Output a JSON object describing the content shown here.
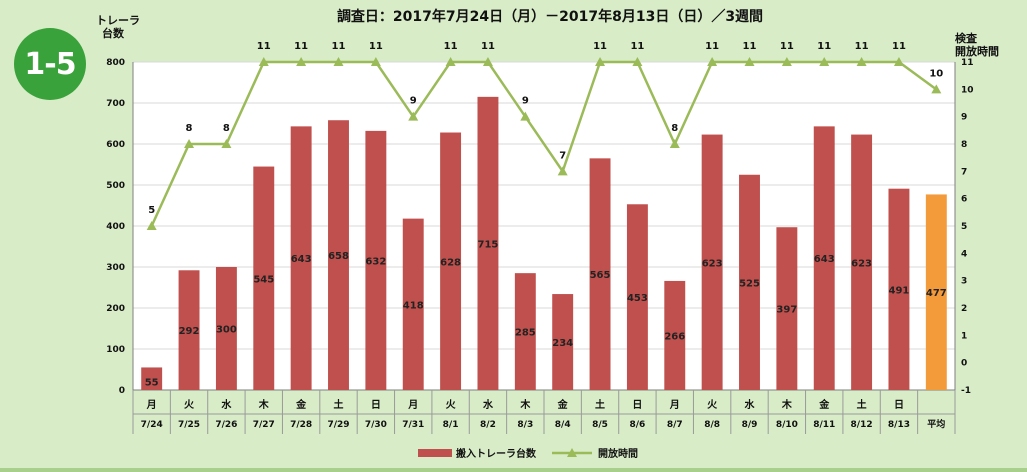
{
  "badge": "1-5",
  "title": {
    "subtitle": "",
    "main": "調査日：2017年7月24日（月）－2017年8月13日（日）／3週間"
  },
  "left_axis_label": [
    "トレーラ",
    "台数"
  ],
  "right_axis_label": [
    "検査",
    "開放時間"
  ],
  "colors": {
    "bar": "#c0504d",
    "bar_avg": "#f39a3a",
    "line": "#9bbb59",
    "background": "#d8ecc8",
    "badge": "#3aa23a"
  },
  "chart_data": {
    "type": "bar",
    "days": [
      "月",
      "火",
      "水",
      "木",
      "金",
      "土",
      "日",
      "月",
      "火",
      "水",
      "木",
      "金",
      "土",
      "日",
      "月",
      "火",
      "水",
      "木",
      "金",
      "土",
      "日",
      ""
    ],
    "dates": [
      "7/24",
      "7/25",
      "7/26",
      "7/27",
      "7/28",
      "7/29",
      "7/30",
      "7/31",
      "8/1",
      "8/2",
      "8/3",
      "8/4",
      "8/5",
      "8/6",
      "8/7",
      "8/8",
      "8/9",
      "8/10",
      "8/11",
      "8/12",
      "8/13",
      "平均"
    ],
    "series": [
      {
        "name": "搬入トレーラ台数",
        "axis": "left",
        "values": [
          55,
          292,
          300,
          545,
          643,
          658,
          632,
          418,
          628,
          715,
          285,
          234,
          565,
          453,
          266,
          623,
          525,
          397,
          643,
          623,
          491,
          477
        ],
        "labels": [
          "55",
          "292",
          "300",
          "545",
          "643",
          "658",
          "632",
          "418",
          "628",
          "715",
          "285",
          "234",
          "565",
          "453",
          "266",
          "623",
          "525",
          "397",
          "643",
          "623",
          "491",
          "477"
        ]
      },
      {
        "name": "開放時間（時間）",
        "axis": "right",
        "values": [
          5,
          8,
          8,
          11,
          11,
          11,
          11,
          9,
          11,
          11,
          9,
          7,
          11,
          11,
          8,
          11,
          11,
          11,
          11,
          11,
          11,
          10
        ],
        "labels": [
          "5",
          "8",
          "8",
          "11",
          "11",
          "11",
          "11",
          "9",
          "11",
          "11",
          "9",
          "7",
          "11",
          "11",
          "8",
          "11",
          "11",
          "11",
          "11",
          "11",
          "11",
          "10"
        ]
      }
    ],
    "y_left": {
      "ticks": [
        0,
        100,
        200,
        300,
        400,
        500,
        600,
        700,
        800
      ],
      "ylim": [
        0,
        800
      ]
    },
    "y_right": {
      "ticks": [
        -1,
        0,
        1,
        2,
        3,
        4,
        5,
        6,
        7,
        8,
        9,
        10,
        11
      ],
      "ylim": [
        -1,
        11
      ]
    },
    "legend": {
      "placement": "bottom",
      "items": [
        "搬入トレーラ台数",
        "開放時間"
      ]
    }
  }
}
